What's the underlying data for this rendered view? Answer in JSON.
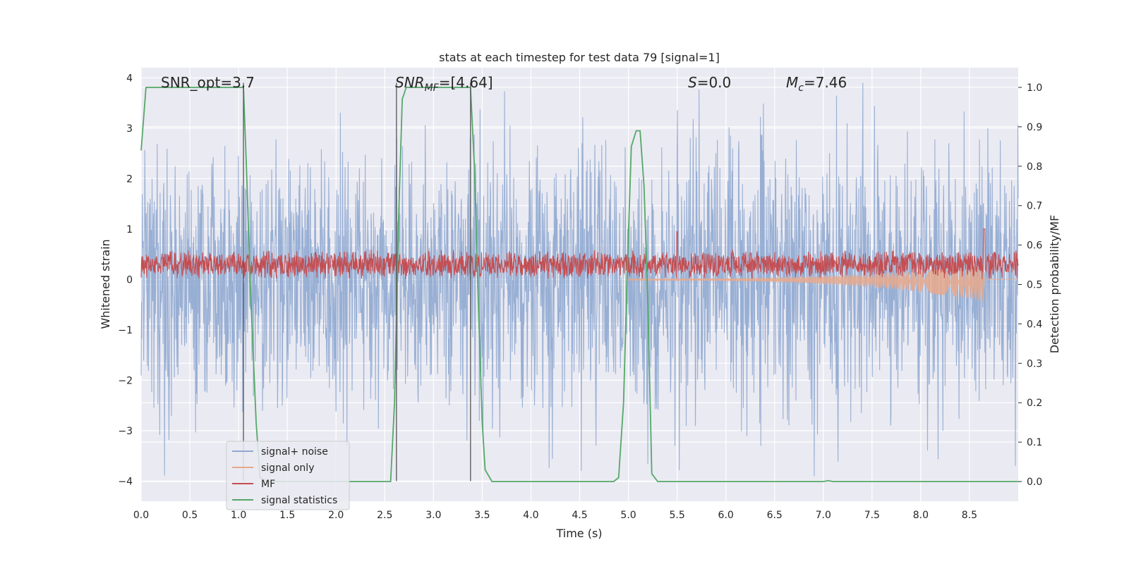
{
  "chart_data": {
    "type": "line",
    "title": "stats at each timestep for test data 79 [signal=1]",
    "xlabel": "Time (s)",
    "ylabel": "Whitened strain",
    "y2label": "Detection probability/MF",
    "xlim": [
      0.0,
      9.0
    ],
    "ylim": [
      -4.4,
      4.2
    ],
    "y2lim": [
      -0.05,
      1.05
    ],
    "x_ticks": [
      "0.0",
      "0.5",
      "1.0",
      "1.5",
      "2.0",
      "2.5",
      "3.0",
      "3.5",
      "4.0",
      "4.5",
      "5.0",
      "5.5",
      "6.0",
      "6.5",
      "7.0",
      "7.5",
      "8.0",
      "8.5"
    ],
    "y_ticks": [
      "4",
      "3",
      "2",
      "1",
      "0",
      "−1",
      "−2",
      "−3",
      "−4"
    ],
    "y2_ticks": [
      "1.0",
      "0.9",
      "0.8",
      "0.7",
      "0.6",
      "0.5",
      "0.4",
      "0.3",
      "0.2",
      "0.1",
      "0.0"
    ],
    "grid": true,
    "legend_position": "lower-left",
    "annotations": {
      "snr_opt": "SNR_opt=3.7",
      "snr_mf_sym": "SNR",
      "snr_mf_sub": "MF",
      "snr_mf_val": "=[4.64]",
      "s_sym": "S",
      "s_val": "=0.0",
      "mc_sym": "M",
      "mc_sub": "c",
      "mc_val": "=7.46"
    },
    "series": [
      {
        "name": "signal+ noise",
        "color": "#8fa8d0",
        "axis": "left",
        "description_kind": "noise",
        "amplitude_typical": 1.6,
        "amplitude_max": 3.9
      },
      {
        "name": "signal only",
        "color": "#e8a98c",
        "axis": "left",
        "chirp_start": 5.0,
        "chirp_end": 8.65,
        "peak_amplitude": 0.6
      },
      {
        "name": "MF",
        "color": "#c44e52",
        "axis": "left",
        "center": 0.3,
        "amplitude_typical": 0.25
      },
      {
        "name": "signal statistics",
        "color": "#55a868",
        "axis": "right",
        "x": [
          0.0,
          0.05,
          0.1,
          0.2,
          0.5,
          1.0,
          1.05,
          1.08,
          1.12,
          1.18,
          1.22,
          1.3,
          1.5,
          2.0,
          2.5,
          2.56,
          2.6,
          2.64,
          2.68,
          2.72,
          2.8,
          3.0,
          3.3,
          3.38,
          3.42,
          3.46,
          3.5,
          3.53,
          3.6,
          4.0,
          4.5,
          4.85,
          4.9,
          4.95,
          4.99,
          5.03,
          5.08,
          5.12,
          5.16,
          5.2,
          5.24,
          5.3,
          6.0,
          7.0,
          7.05,
          7.1,
          7.2,
          8.0,
          9.0
        ],
        "y": [
          0.84,
          1.0,
          1.0,
          1.0,
          1.0,
          1.0,
          1.0,
          0.8,
          0.5,
          0.15,
          0.01,
          0.0,
          0.0,
          0.0,
          0.0,
          0.0,
          0.2,
          0.65,
          0.97,
          1.0,
          1.0,
          1.0,
          1.0,
          1.0,
          0.8,
          0.45,
          0.15,
          0.03,
          0.0,
          0.0,
          0.0,
          0.0,
          0.01,
          0.2,
          0.55,
          0.85,
          0.89,
          0.89,
          0.75,
          0.45,
          0.02,
          0.0,
          0.0,
          0.0,
          0.002,
          0.0,
          0.0,
          0.0,
          0.0
        ]
      }
    ],
    "vertical_lines": [
      {
        "x": 1.05,
        "y_range": [
          -4.0,
          3.9
        ]
      },
      {
        "x": 2.62,
        "y_range": [
          -4.0,
          3.9
        ]
      },
      {
        "x": 3.38,
        "y_range": [
          -4.0,
          3.9
        ]
      }
    ]
  }
}
